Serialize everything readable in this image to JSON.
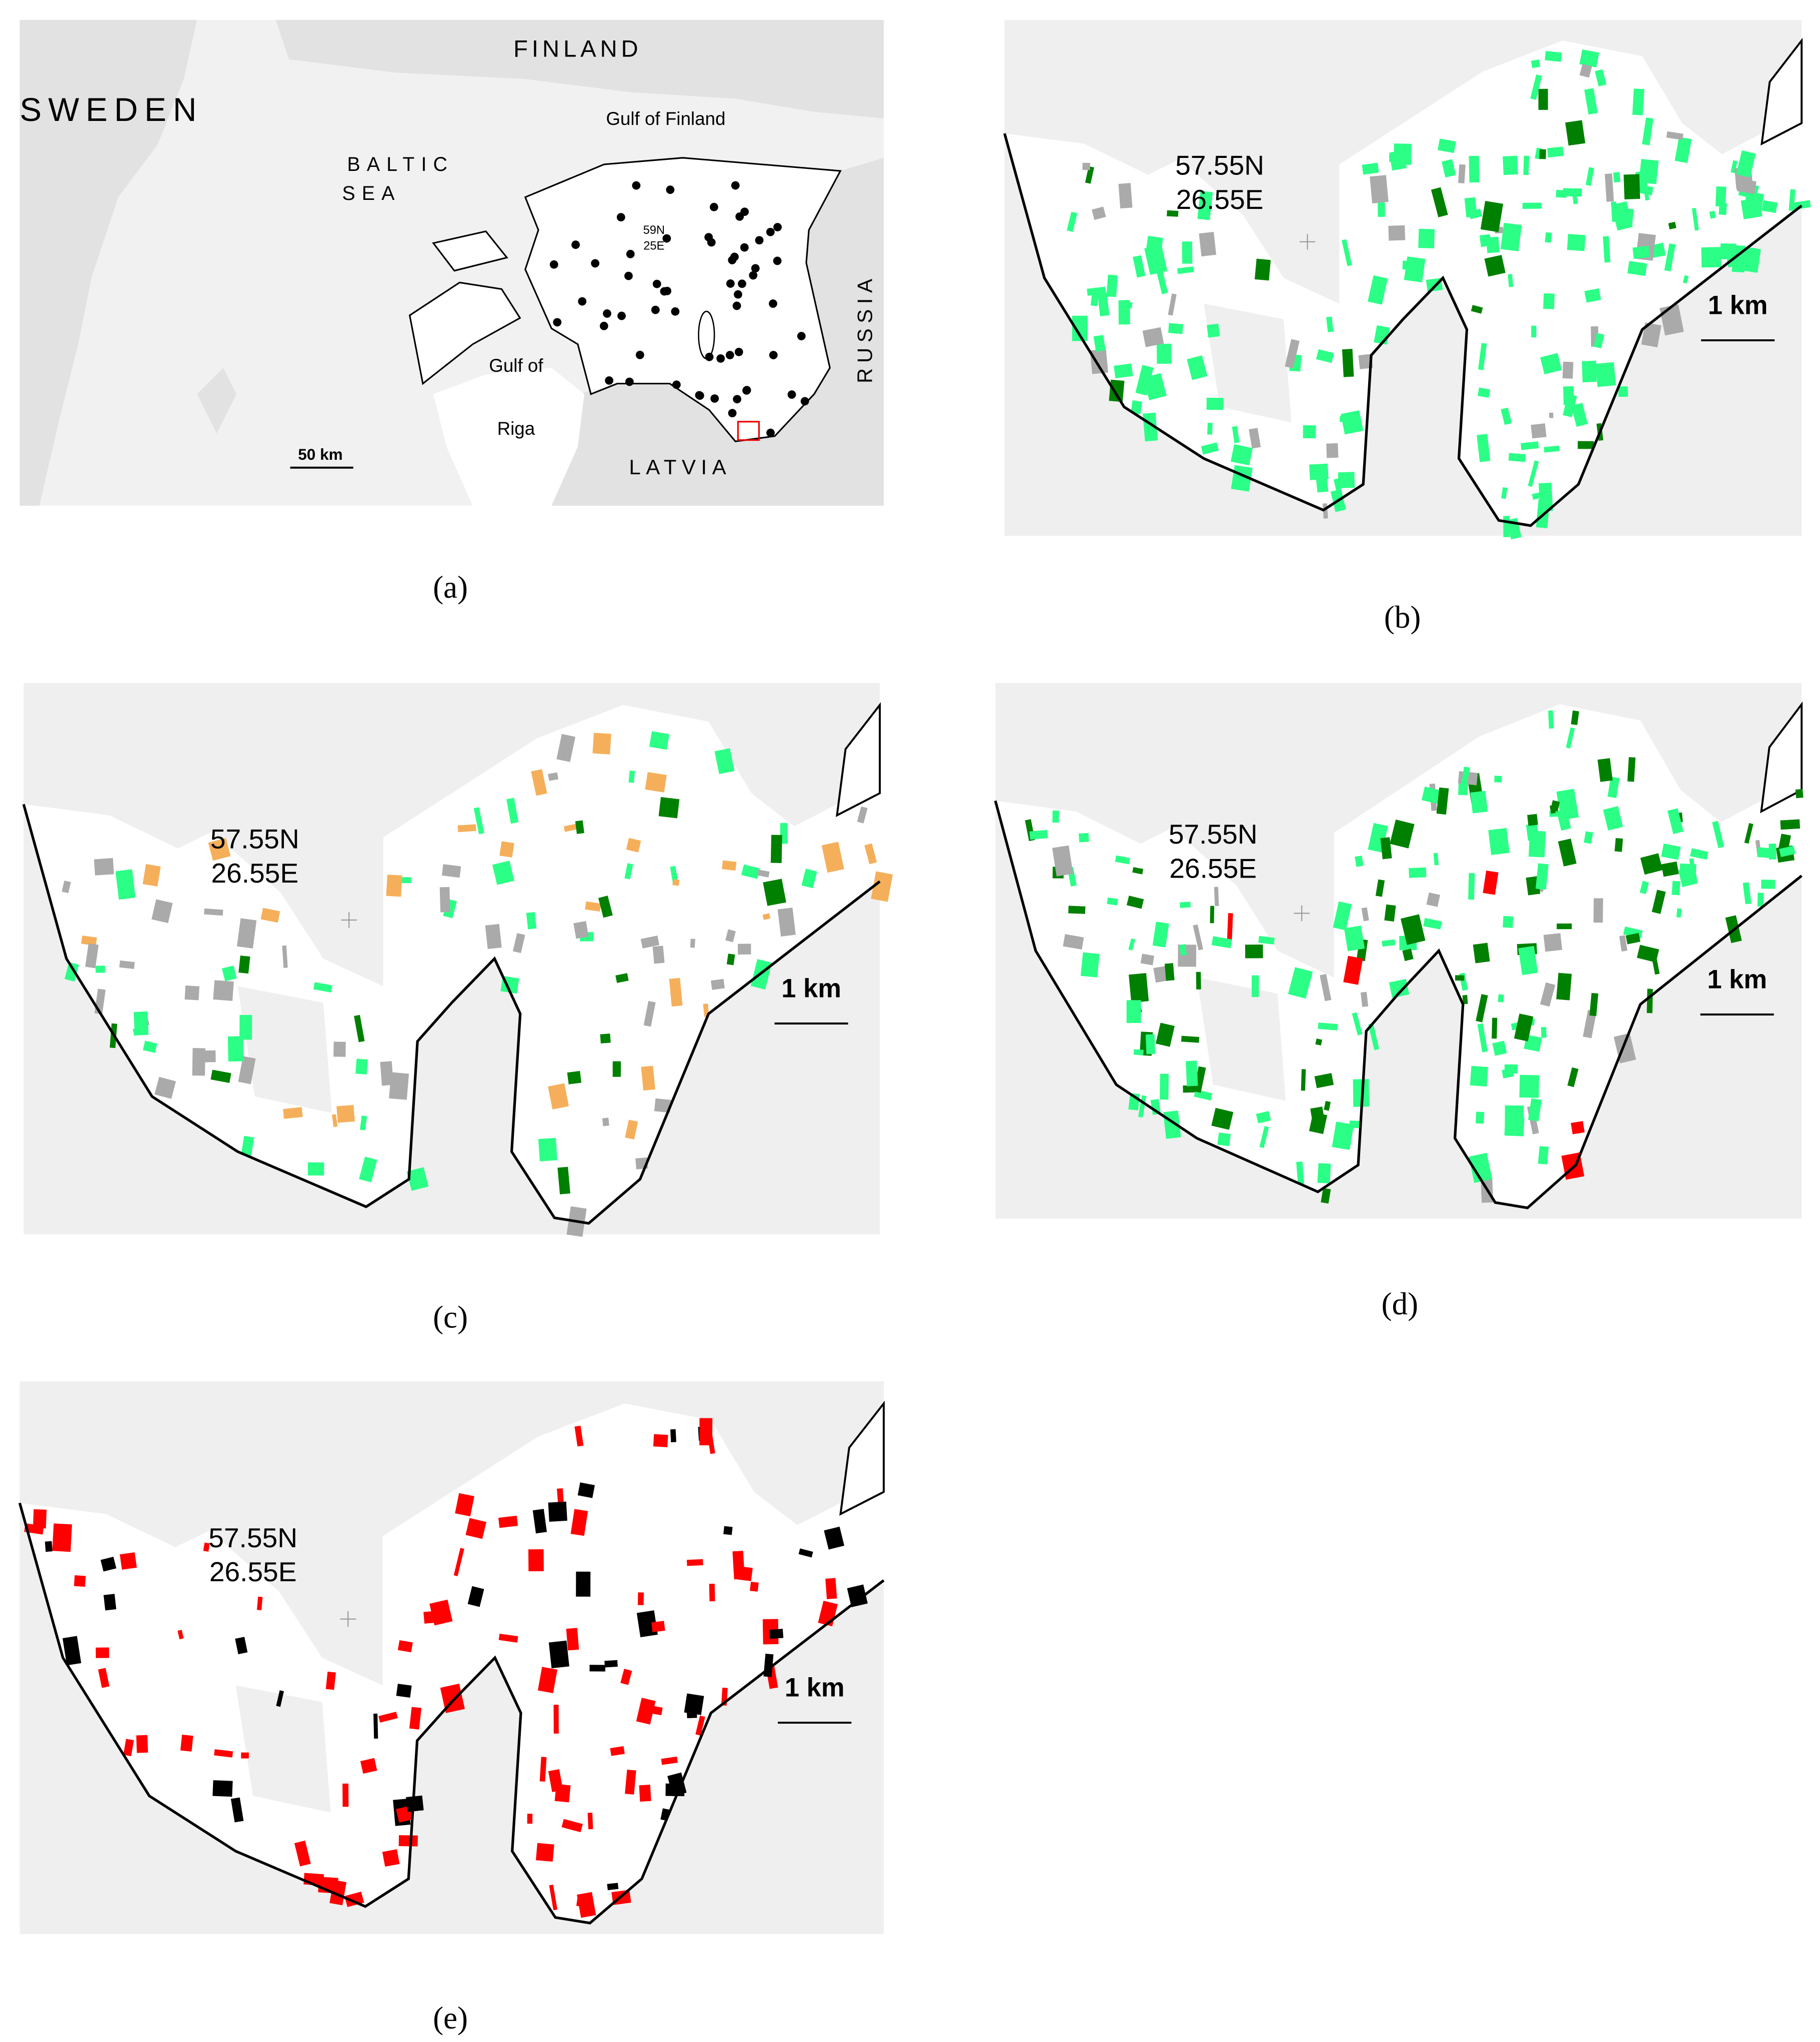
{
  "panel_a": {
    "labels": [
      "SWEDEN",
      "FINLAND",
      "Gulf of Finland",
      "BALTIC",
      "SEA",
      "59N",
      "25E",
      "Gulf of",
      "Riga",
      "LATVIA",
      "RUSSIA",
      "50 km"
    ],
    "caption": "(a)"
  },
  "map_panels": [
    {
      "lat": "57.55N",
      "lon": "26.55E",
      "scale": "1 km",
      "caption": "(b)"
    },
    {
      "lat": "57.55N",
      "lon": "26.55E",
      "scale": "1 km",
      "caption": "(c)"
    },
    {
      "lat": "57.55N",
      "lon": "26.55E",
      "scale": "1 km",
      "caption": "(d)"
    },
    {
      "lat": "57.55N",
      "lon": "26.55E",
      "scale": "1 km",
      "caption": "(e)"
    }
  ]
}
